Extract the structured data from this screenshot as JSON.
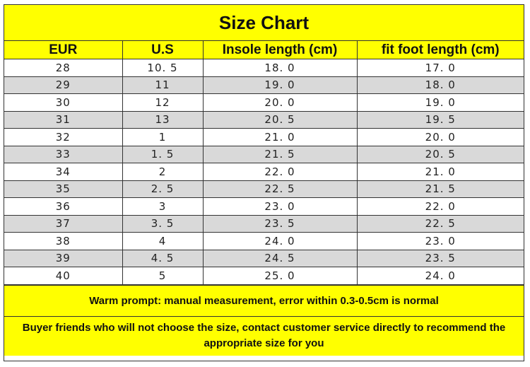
{
  "title": "Size Chart",
  "columns": [
    "EUR",
    "U.S",
    "Insole length (cm)",
    "fit foot length (cm)"
  ],
  "rows": [
    [
      "28",
      "10. 5",
      "18. 0",
      "17. 0"
    ],
    [
      "29",
      "11",
      "19. 0",
      "18. 0"
    ],
    [
      "30",
      "12",
      "20. 0",
      "19. 0"
    ],
    [
      "31",
      "13",
      "20. 5",
      "19. 5"
    ],
    [
      "32",
      "1",
      "21. 0",
      "20. 0"
    ],
    [
      "33",
      "1. 5",
      "21. 5",
      "20. 5"
    ],
    [
      "34",
      "2",
      "22. 0",
      "21. 0"
    ],
    [
      "35",
      "2. 5",
      "22. 5",
      "21. 5"
    ],
    [
      "36",
      "3",
      "23. 0",
      "22. 0"
    ],
    [
      "37",
      "3. 5",
      "23. 5",
      "22. 5"
    ],
    [
      "38",
      "4",
      "24. 0",
      "23. 0"
    ],
    [
      "39",
      "4. 5",
      "24. 5",
      "23. 5"
    ],
    [
      "40",
      "5",
      "25. 0",
      "24. 0"
    ]
  ],
  "note_prompt": "Warm prompt: manual measurement, error within 0.3-0.5cm is normal",
  "note_service": "Buyer friends who will not choose the size, contact customer service directly to recommend the appropriate size for you",
  "colors": {
    "header_bg": "#ffff00",
    "alt_row_bg": "#d9d9d9",
    "border": "#333333"
  }
}
